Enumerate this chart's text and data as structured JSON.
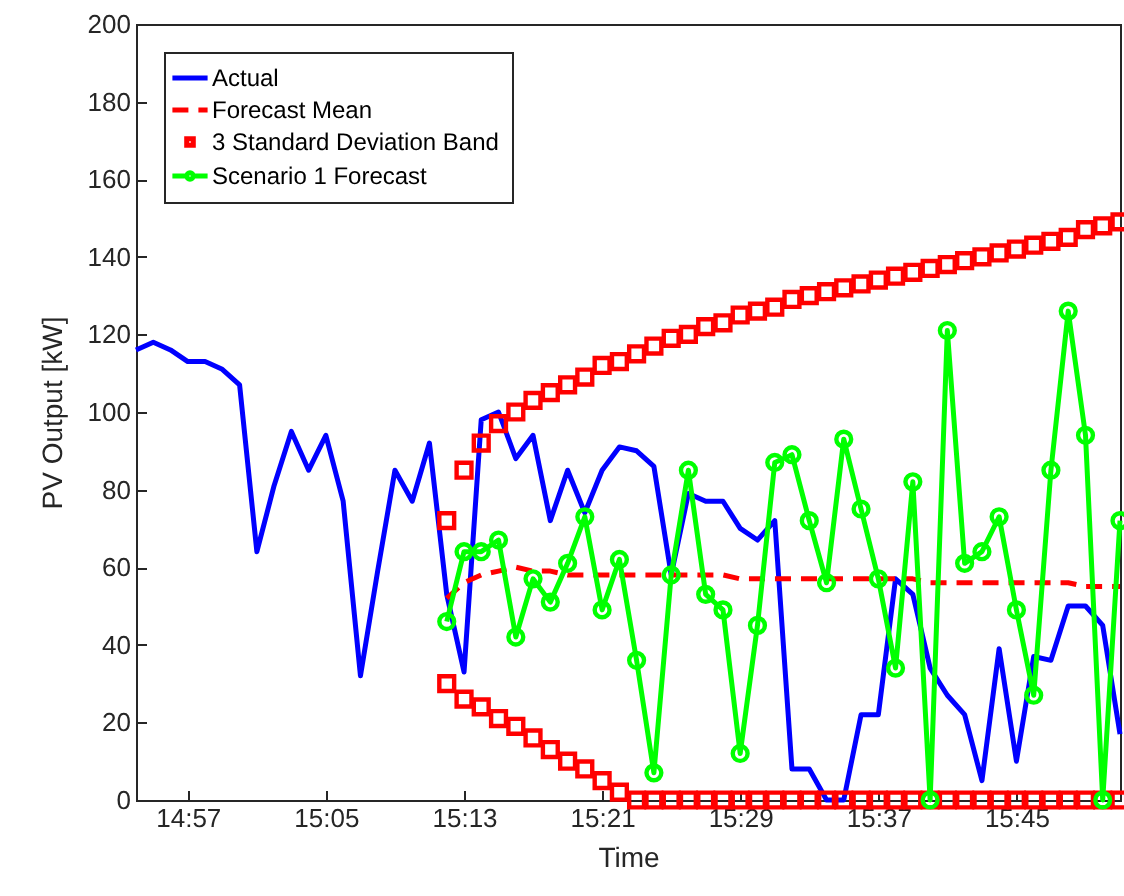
{
  "chart_data": {
    "type": "line",
    "xlabel": "Time",
    "ylabel": "PV Output [kW]",
    "legend": "top left",
    "grid": false,
    "xlim": [
      14.9,
      15.85
    ],
    "xticks": [
      {
        "value": 14.95,
        "label": "14:57"
      },
      {
        "value": 15.0833,
        "label": "15:05"
      },
      {
        "value": 15.2167,
        "label": "15:13"
      },
      {
        "value": 15.35,
        "label": "15:21"
      },
      {
        "value": 15.4833,
        "label": "15:29"
      },
      {
        "value": 15.6167,
        "label": "15:37"
      },
      {
        "value": 15.75,
        "label": "15:45"
      }
    ],
    "ylim": [
      0,
      200
    ],
    "yticks": [
      0,
      20,
      40,
      60,
      80,
      100,
      120,
      140,
      160,
      180,
      200
    ],
    "x": [
      14.9,
      14.9167,
      14.9333,
      14.95,
      14.9667,
      14.9833,
      15,
      15.0167,
      15.0333,
      15.05,
      15.0667,
      15.0833,
      15.1,
      15.1167,
      15.1333,
      15.15,
      15.1667,
      15.1833,
      15.2,
      15.2167,
      15.2333,
      15.25,
      15.2667,
      15.2833,
      15.3,
      15.3167,
      15.3333,
      15.35,
      15.3667,
      15.3833,
      15.4,
      15.4167,
      15.4333,
      15.45,
      15.4667,
      15.4833,
      15.5,
      15.5167,
      15.5333,
      15.55,
      15.5667,
      15.5833,
      15.6,
      15.6167,
      15.6333,
      15.65,
      15.6667,
      15.6833,
      15.7,
      15.7167,
      15.7333,
      15.75,
      15.7667,
      15.7833,
      15.8,
      15.8167,
      15.8333,
      15.85
    ],
    "series": [
      {
        "name": "Actual",
        "type": "line",
        "color": "#0000ff",
        "line_style": "solid",
        "marker": "none",
        "values": [
          116,
          118,
          116,
          113,
          113,
          111,
          107,
          64,
          81,
          95,
          85,
          94,
          77,
          32,
          59,
          85,
          77,
          92,
          53,
          33,
          98,
          100,
          88,
          94,
          72,
          85,
          74,
          85,
          91,
          90,
          86,
          58,
          79,
          77,
          77,
          70,
          67,
          72,
          8,
          8,
          0,
          0,
          22,
          22,
          57,
          53,
          34,
          27,
          22,
          5,
          39,
          10,
          37,
          36,
          50,
          50,
          45,
          17
        ]
      },
      {
        "name": "Forecast Mean",
        "type": "line",
        "color": "#ff0000",
        "line_style": "dashed",
        "marker": "none",
        "values": [
          null,
          null,
          null,
          null,
          null,
          null,
          null,
          null,
          null,
          null,
          null,
          null,
          null,
          null,
          null,
          null,
          null,
          null,
          52,
          56,
          58,
          59,
          60,
          59,
          59,
          58,
          58,
          58,
          58,
          58,
          58,
          58,
          58,
          58,
          58,
          57,
          57,
          57,
          57,
          57,
          57,
          57,
          57,
          57,
          57,
          57,
          56,
          56,
          56,
          56,
          56,
          56,
          56,
          56,
          56,
          55,
          55,
          55
        ]
      },
      {
        "name": "3 Standard Deviation Band",
        "type": "scatter",
        "color": "#ff0000",
        "marker": "square",
        "values": [
          null,
          null,
          null,
          null,
          null,
          null,
          null,
          null,
          null,
          null,
          null,
          null,
          null,
          null,
          null,
          null,
          null,
          null,
          72,
          85,
          92,
          97,
          100,
          103,
          105,
          107,
          109,
          112,
          113,
          115,
          117,
          119,
          120,
          122,
          123,
          125,
          126,
          127,
          129,
          130,
          131,
          132,
          133,
          134,
          135,
          136,
          137,
          138,
          139,
          140,
          141,
          142,
          143,
          144,
          145,
          147,
          148,
          149
        ]
      },
      {
        "type": "scatter",
        "color": "#ff0000",
        "marker": "square",
        "values": [
          null,
          null,
          null,
          null,
          null,
          null,
          null,
          null,
          null,
          null,
          null,
          null,
          null,
          null,
          null,
          null,
          null,
          null,
          30,
          26,
          24,
          21,
          19,
          16,
          13,
          10,
          8,
          5,
          2,
          0,
          0,
          0,
          0,
          0,
          0,
          0,
          0,
          0,
          0,
          0,
          0,
          0,
          0,
          0,
          0,
          0,
          0,
          0,
          0,
          0,
          0,
          0,
          0,
          0,
          0,
          0,
          0,
          0
        ]
      },
      {
        "name": "Scenario 1 Forecast",
        "type": "line",
        "color": "#00ff00",
        "line_style": "solid",
        "marker": "circle",
        "values": [
          null,
          null,
          null,
          null,
          null,
          null,
          null,
          null,
          null,
          null,
          null,
          null,
          null,
          null,
          null,
          null,
          null,
          null,
          46,
          64,
          64,
          67,
          42,
          57,
          51,
          61,
          73,
          49,
          62,
          36,
          7,
          58,
          85,
          53,
          49,
          12,
          45,
          87,
          89,
          72,
          56,
          93,
          75,
          57,
          34,
          82,
          0,
          121,
          61,
          64,
          73,
          49,
          27,
          85,
          126,
          94,
          0,
          72
        ]
      }
    ]
  }
}
